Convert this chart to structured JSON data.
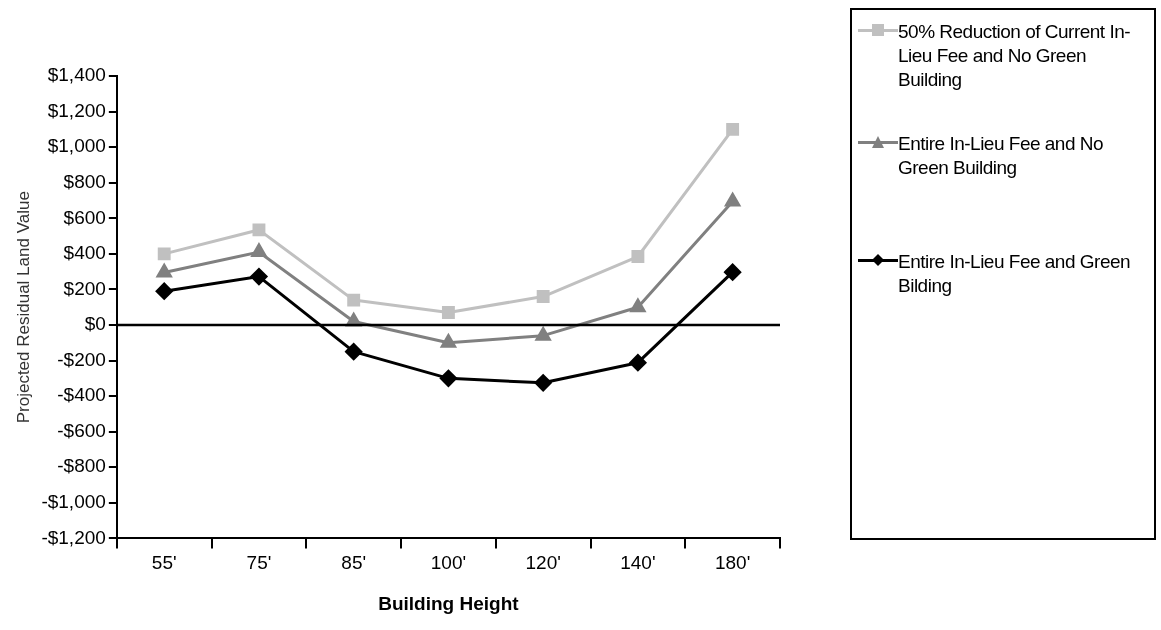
{
  "chart_data": {
    "type": "line",
    "xlabel": "Building Height",
    "ylabel": "Projected Residual Land Value",
    "categories": [
      "55'",
      "75'",
      "85'",
      "100'",
      "120'",
      "140'",
      "180'"
    ],
    "series": [
      {
        "name": "50% Reduction of Current In-Lieu Fee and No Green Building",
        "color": "#c0c0c0",
        "marker": "square",
        "values": [
          400,
          535,
          140,
          70,
          160,
          385,
          1100
        ]
      },
      {
        "name": "Entire In-Lieu Fee and No Green Building",
        "color": "#808080",
        "marker": "triangle",
        "values": [
          295,
          410,
          20,
          -100,
          -60,
          100,
          695
        ]
      },
      {
        "name": "Entire In-Lieu Fee and Green Bilding",
        "color": "#000000",
        "marker": "diamond",
        "values": [
          190,
          272,
          -150,
          -300,
          -325,
          -212,
          297
        ]
      }
    ],
    "ylim": [
      -1200,
      1400
    ],
    "yticks": [
      {
        "value": 1400,
        "label": "$1,400"
      },
      {
        "value": 1200,
        "label": "$1,200"
      },
      {
        "value": 1000,
        "label": "$1,000"
      },
      {
        "value": 800,
        "label": "$800"
      },
      {
        "value": 600,
        "label": "$600"
      },
      {
        "value": 400,
        "label": "$400"
      },
      {
        "value": 200,
        "label": "$200"
      },
      {
        "value": 0,
        "label": "$0"
      },
      {
        "value": -200,
        "label": "-$200"
      },
      {
        "value": -400,
        "label": "-$400"
      },
      {
        "value": -600,
        "label": "-$600"
      },
      {
        "value": -800,
        "label": "-$800"
      },
      {
        "value": -1000,
        "label": "-$1,000"
      },
      {
        "value": -1200,
        "label": "-$1,200"
      }
    ],
    "ref_lines": [
      {
        "axis": "y",
        "value": 0,
        "color": "#000000"
      }
    ],
    "grid": false,
    "legend": "right"
  }
}
